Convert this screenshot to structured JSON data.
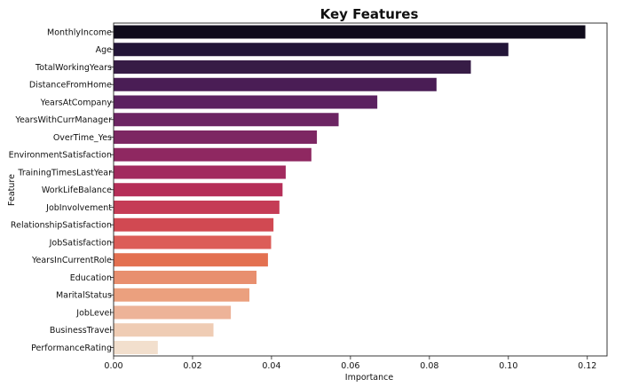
{
  "chart_data": {
    "type": "bar",
    "orientation": "horizontal",
    "title": "Key Features",
    "xlabel": "Importance",
    "ylabel": "Feature",
    "xlim": [
      0,
      0.125
    ],
    "xticks": [
      0.0,
      0.02,
      0.04,
      0.06,
      0.08,
      0.1,
      0.12
    ],
    "xtick_labels": [
      "0.00",
      "0.02",
      "0.04",
      "0.06",
      "0.08",
      "0.10",
      "0.12"
    ],
    "grid": false,
    "palette": "rocket",
    "categories": [
      "MonthlyIncome",
      "Age",
      "TotalWorkingYears",
      "DistanceFromHome",
      "YearsAtCompany",
      "YearsWithCurrManager",
      "OverTime_Yes",
      "EnvironmentSatisfaction",
      "TrainingTimesLastYear",
      "WorkLifeBalance",
      "JobInvolvement",
      "RelationshipSatisfaction",
      "JobSatisfaction",
      "YearsInCurrentRole",
      "Education",
      "MaritalStatus",
      "JobLevel",
      "BusinessTravel",
      "PerformanceRating"
    ],
    "values": [
      0.1195,
      0.1,
      0.0905,
      0.0818,
      0.0668,
      0.057,
      0.0515,
      0.0501,
      0.0436,
      0.0428,
      0.042,
      0.0405,
      0.0399,
      0.0391,
      0.0362,
      0.0344,
      0.0297,
      0.0253,
      0.0112
    ],
    "colors": [
      "#0f0b1b",
      "#231538",
      "#371c46",
      "#4a1d55",
      "#5b2160",
      "#6c2563",
      "#7d2763",
      "#8f2861",
      "#a22a5e",
      "#b52e58",
      "#c53c56",
      "#d14952",
      "#dc5d58",
      "#e37050",
      "#e88f6f",
      "#eba07e",
      "#edb398",
      "#efccb4",
      "#f2dfcd"
    ]
  }
}
